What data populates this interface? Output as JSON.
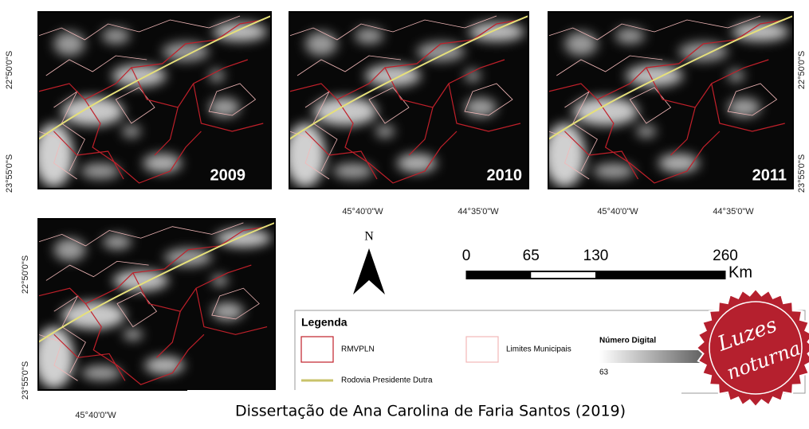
{
  "panels": [
    {
      "year": "2009"
    },
    {
      "year": "2010"
    },
    {
      "year": "2011"
    }
  ],
  "coordinates": {
    "lat_top": "22°50'0\"S",
    "lat_bottom": "23°55'0\"S",
    "lon_left": "45°40'0\"W",
    "lon_right": "44°35'0\"W"
  },
  "north": "N",
  "scale": {
    "ticks": [
      0,
      65,
      130,
      260
    ],
    "unit": "Km"
  },
  "legend": {
    "title": "Legenda",
    "items": [
      "RMVPLN",
      "Limites Municipais",
      "Rodovia Presidente Dutra"
    ],
    "ramp_title": "Número Digital",
    "ramp_min": "63"
  },
  "caption": "Dissertação de Ana Carolina de Faria Santos (2019)",
  "badge": {
    "line1": "Luzes",
    "line2": "noturna"
  }
}
